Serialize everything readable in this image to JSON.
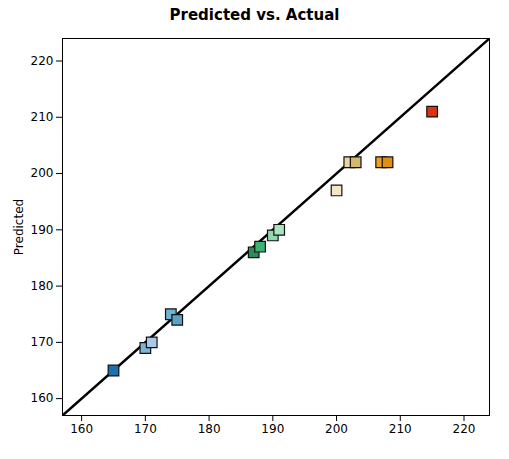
{
  "chart_data": {
    "type": "scatter",
    "title": "Predicted vs. Actual",
    "ylabel": "Predicted",
    "x": [
      165,
      170,
      171,
      174,
      175,
      187,
      188,
      190,
      191,
      200,
      202,
      203,
      207,
      208,
      215
    ],
    "values": [
      165,
      169,
      170,
      175,
      174,
      186,
      187,
      189,
      190,
      197,
      202,
      202,
      202,
      202,
      211
    ],
    "colors": [
      "#1a6faf",
      "#7ab4d8",
      "#a8c8e8",
      "#6db3d4",
      "#5ba3c4",
      "#2e8b57",
      "#3cb371",
      "#90d8b0",
      "#a8e4c0",
      "#f5e6c8",
      "#e8d5a0",
      "#d4b870",
      "#f0a020",
      "#e09010",
      "#e03010"
    ],
    "marker": "square",
    "reference_line": {
      "x": [
        155,
        225
      ],
      "y": [
        155,
        225
      ],
      "color": "#000000"
    },
    "xlim": [
      157,
      224
    ],
    "ylim": [
      157,
      224
    ],
    "xticks": [
      160,
      170,
      180,
      190,
      200,
      210,
      220
    ],
    "yticks": [
      160,
      170,
      180,
      190,
      200,
      210,
      220
    ]
  }
}
